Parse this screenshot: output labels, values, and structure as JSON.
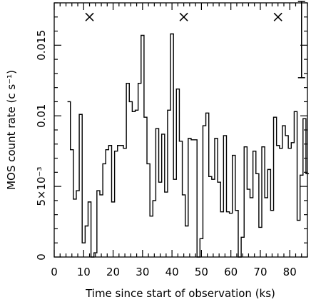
{
  "chart_data": {
    "type": "line",
    "style": "step",
    "xlabel": "Time since start of observation (ks)",
    "ylabel": "MOS count rate (c s⁻¹)",
    "xlim": [
      0,
      86
    ],
    "ylim": [
      0,
      0.018
    ],
    "xticks": [
      {
        "value": 0,
        "label": "0"
      },
      {
        "value": 10,
        "label": "10"
      },
      {
        "value": 20,
        "label": "20"
      },
      {
        "value": 30,
        "label": "30"
      },
      {
        "value": 40,
        "label": "40"
      },
      {
        "value": 50,
        "label": "50"
      },
      {
        "value": 60,
        "label": "60"
      },
      {
        "value": 70,
        "label": "70"
      },
      {
        "value": 80,
        "label": "80"
      }
    ],
    "yticks": [
      {
        "value": 0,
        "label": "0"
      },
      {
        "value": 0.005,
        "label": "5×10⁻³"
      },
      {
        "value": 0.01,
        "label": "0.01"
      },
      {
        "value": 0.015,
        "label": "0.015"
      }
    ],
    "bin_width_ks": 1,
    "bin_start_ks": 4.5,
    "series": [
      {
        "values": [
          0.011,
          0.0076,
          0.0041,
          0.0047,
          0.0101,
          0.001,
          0.0022,
          0.0039,
          0.0,
          0.0003,
          0.0047,
          0.0044,
          0.0066,
          0.0076,
          0.0079,
          0.0039,
          0.0075,
          0.0079,
          0.0079,
          0.0077,
          0.0123,
          0.011,
          0.0103,
          0.0104,
          0.0123,
          0.0157,
          0.0099,
          0.0066,
          0.0029,
          0.004,
          0.0091,
          0.0053,
          0.0087,
          0.0046,
          0.0104,
          0.0158,
          0.0055,
          0.0119,
          0.0082,
          0.0044,
          0.0022,
          0.0084,
          0.0083,
          0.0083,
          0.0,
          0.0013,
          0.0093,
          0.0102,
          0.0057,
          0.0055,
          0.0084,
          0.0053,
          0.0032,
          0.0086,
          0.0032,
          0.0031,
          0.0072,
          0.0033,
          0.0,
          0.0014,
          0.0078,
          0.0048,
          0.0042,
          0.0075,
          0.0059,
          0.0021,
          0.0078,
          0.0042,
          0.0062,
          0.0033,
          0.0099,
          0.0079,
          0.0077,
          0.0093,
          0.0086,
          0.0077,
          0.0081,
          0.0103,
          0.0026,
          0.0058,
          0.0098,
          0.0059
        ]
      }
    ],
    "markers": [
      {
        "x": 12,
        "y": 0.017,
        "symbol": "×"
      },
      {
        "x": 44,
        "y": 0.017,
        "symbol": "×"
      },
      {
        "x": 76,
        "y": 0.017,
        "symbol": "×"
      }
    ],
    "error_bar": {
      "x": 84,
      "y_low": 0.0127,
      "y_high": 0.0181
    },
    "grid": false
  }
}
